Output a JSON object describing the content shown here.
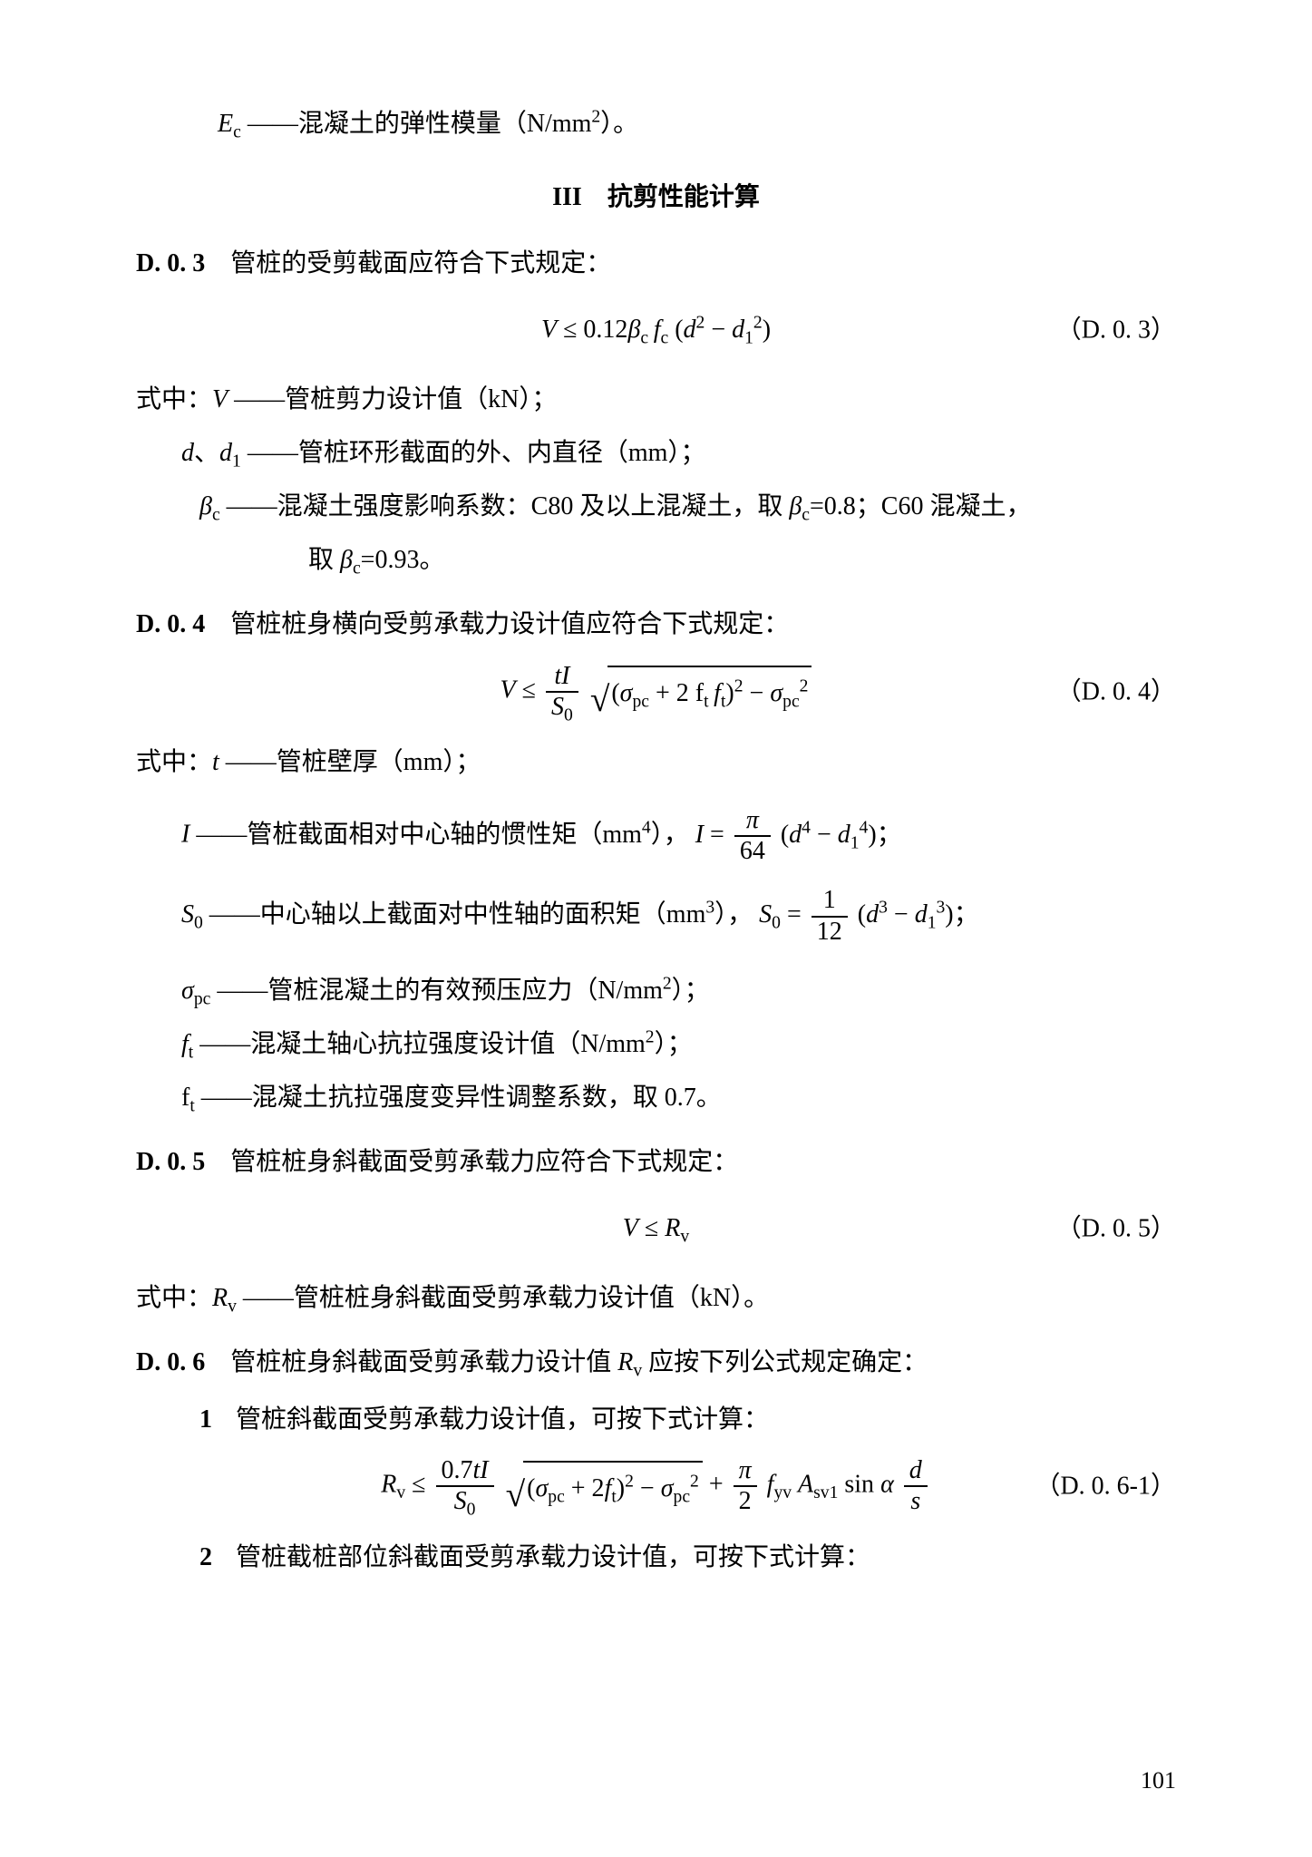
{
  "top_def": {
    "symbol_html": "<span class='it'>E</span><sub class='upright-sub'>c</sub>",
    "text": "——混凝土的弹性模量（N/mm<sup>2</sup>）。"
  },
  "section_title": "III　抗剪性能计算",
  "D03": {
    "head_num": "D. 0. 3",
    "head_text": "　管桩的受剪截面应符合下式规定：",
    "formula_html": "<span class='it'>V</span> ≤ 0.12<span class='it'>β</span><sub class='upright-sub'>c</sub>&thinsp;<span class='it'>f</span><sub class='upright-sub'>c</sub> (<span class='it'>d</span><sup>2</sup> − <span class='it'>d</span><sub>1</sub><sup>2</sup>)",
    "tag": "（D. 0. 3）",
    "where_label": "式中：",
    "defs": [
      {
        "sym_html": "<span class='it'>V</span>",
        "text_html": "——管桩剪力设计值（kN）；",
        "cls": "indent0"
      },
      {
        "sym_html": "<span class='it'>d</span>、<span class='it'>d</span><sub>1</sub>",
        "text_html": "——管桩环形截面的外、内直径（mm）；",
        "cls": "indent1"
      },
      {
        "sym_html": "<span class='it'>β</span><sub class='upright-sub'>c</sub>",
        "text_html": "——混凝土强度影响系数：C80 及以上混凝土，取 <span class='it'>β</span><sub class='upright-sub'>c</sub>=0.8；C60 混凝土，",
        "cls": "indent2"
      }
    ],
    "def_cont": "取 <span class='it'>β</span><sub class='upright-sub'>c</sub>=0.93。"
  },
  "D04": {
    "head_num": "D. 0. 4",
    "head_text": "　管桩桩身横向受剪承载力设计值应符合下式规定：",
    "formula_html": "<span class='it'>V</span> ≤ <span class='frac'><span class='num'><span class='it'>tI</span></span><span class='den'><span class='it'>S</span><sub>0</sub></span></span> <span class='sqrt'><span class='rad'>√</span><span class='body'>(<span class='it'>σ</span><sub class='upright-sub'>pc</sub> + 2 f<sub class='upright-sub'>t</sub>&thinsp;<span class='it'>f</span><sub class='upright-sub'>t</sub>)<sup>2</sup> − <span class='it'>σ</span><sub class='upright-sub'>pc</sub><sup>2</sup></span></span>",
    "tag": "（D. 0. 4）",
    "where_label": "式中：",
    "defs": [
      {
        "sym_html": "<span class='it'>t</span>",
        "text_html": "——管桩壁厚（mm）；",
        "cls": "indent0"
      },
      {
        "sym_html": "<span class='it'>I</span>",
        "text_html": "——管桩截面相对中心轴的惯性矩（mm<sup>4</sup>）， <span class='it'>I</span> = <span class='frac'><span class='num'><span class='it roman'>π</span></span><span class='den'>64</span></span> (<span class='it'>d</span><sup>4</sup> − <span class='it'>d</span><sub>1</sub><sup>4</sup>)；",
        "cls": "indent1"
      },
      {
        "sym_html": "<span class='it'>S</span><sub>0</sub>",
        "text_html": "——中心轴以上截面对中性轴的面积矩（mm<sup>3</sup>）， <span class='it'>S</span><sub>0</sub> = <span class='frac'><span class='num'>1</span><span class='den'>12</span></span> (<span class='it'>d</span><sup>3</sup> − <span class='it'>d</span><sub>1</sub><sup>3</sup>)；",
        "cls": "indent1"
      },
      {
        "sym_html": "<span class='it'>σ</span><sub class='upright-sub'>pc</sub>",
        "text_html": "——管桩混凝土的有效预压应力（N/mm<sup>2</sup>）；",
        "cls": "indent1"
      },
      {
        "sym_html": "<span class='it'>f</span><sub class='upright-sub'>t</sub>",
        "text_html": "——混凝土轴心抗拉强度设计值（N/mm<sup>2</sup>）；",
        "cls": "indent1"
      },
      {
        "sym_html": "f<sub class='upright-sub'>t</sub>",
        "text_html": "——混凝土抗拉强度变异性调整系数，取 0.7。",
        "cls": "indent1"
      }
    ]
  },
  "D05": {
    "head_num": "D. 0. 5",
    "head_text": "　管桩桩身斜截面受剪承载力应符合下式规定：",
    "formula_html": "<span class='it'>V</span> ≤ <span class='it'>R</span><sub class='upright-sub'>v</sub>",
    "tag": "（D. 0. 5）",
    "where_label": "式中：",
    "defs": [
      {
        "sym_html": "<span class='it'>R</span><sub class='upright-sub'>v</sub>",
        "text_html": "——管桩桩身斜截面受剪承载力设计值（kN）。",
        "cls": "indent0"
      }
    ]
  },
  "D06": {
    "head_num": "D. 0. 6",
    "head_text_html": "　管桩桩身斜截面受剪承载力设计值 <span class='it'>R</span><sub class='upright-sub'>v</sub> 应按下列公式规定确定：",
    "items": [
      {
        "n": "1",
        "text": "管桩斜截面受剪承载力设计值，可按下式计算："
      }
    ],
    "formula_html": "<span class='it'>R</span><sub class='upright-sub'>v</sub> ≤ <span class='frac'><span class='num'>0.7<span class='it'>tI</span></span><span class='den'><span class='it'>S</span><sub>0</sub></span></span> <span class='sqrt'><span class='rad'>√</span><span class='body'>(<span class='it'>σ</span><sub class='upright-sub'>pc</sub> + 2<span class='it'>f</span><sub class='upright-sub'>t</sub>)<sup>2</sup> − <span class='it'>σ</span><sub class='upright-sub'>pc</sub><sup>2</sup></span></span> + <span class='frac'><span class='num'><span class='it roman'>π</span></span><span class='den'>2</span></span> <span class='it'>f</span><sub class='upright-sub'>yv</sub> <span class='it'>A</span><sub class='upright-sub'>sv1</sub> sin <span class='it'>α</span> <span class='frac'><span class='num'><span class='it'>d</span></span><span class='den'><span class='it'>s</span></span></span>",
    "tag": "（D. 0. 6-1）",
    "items2": [
      {
        "n": "2",
        "text": "管桩截桩部位斜截面受剪承载力设计值，可按下式计算："
      }
    ]
  },
  "page_number": "101"
}
